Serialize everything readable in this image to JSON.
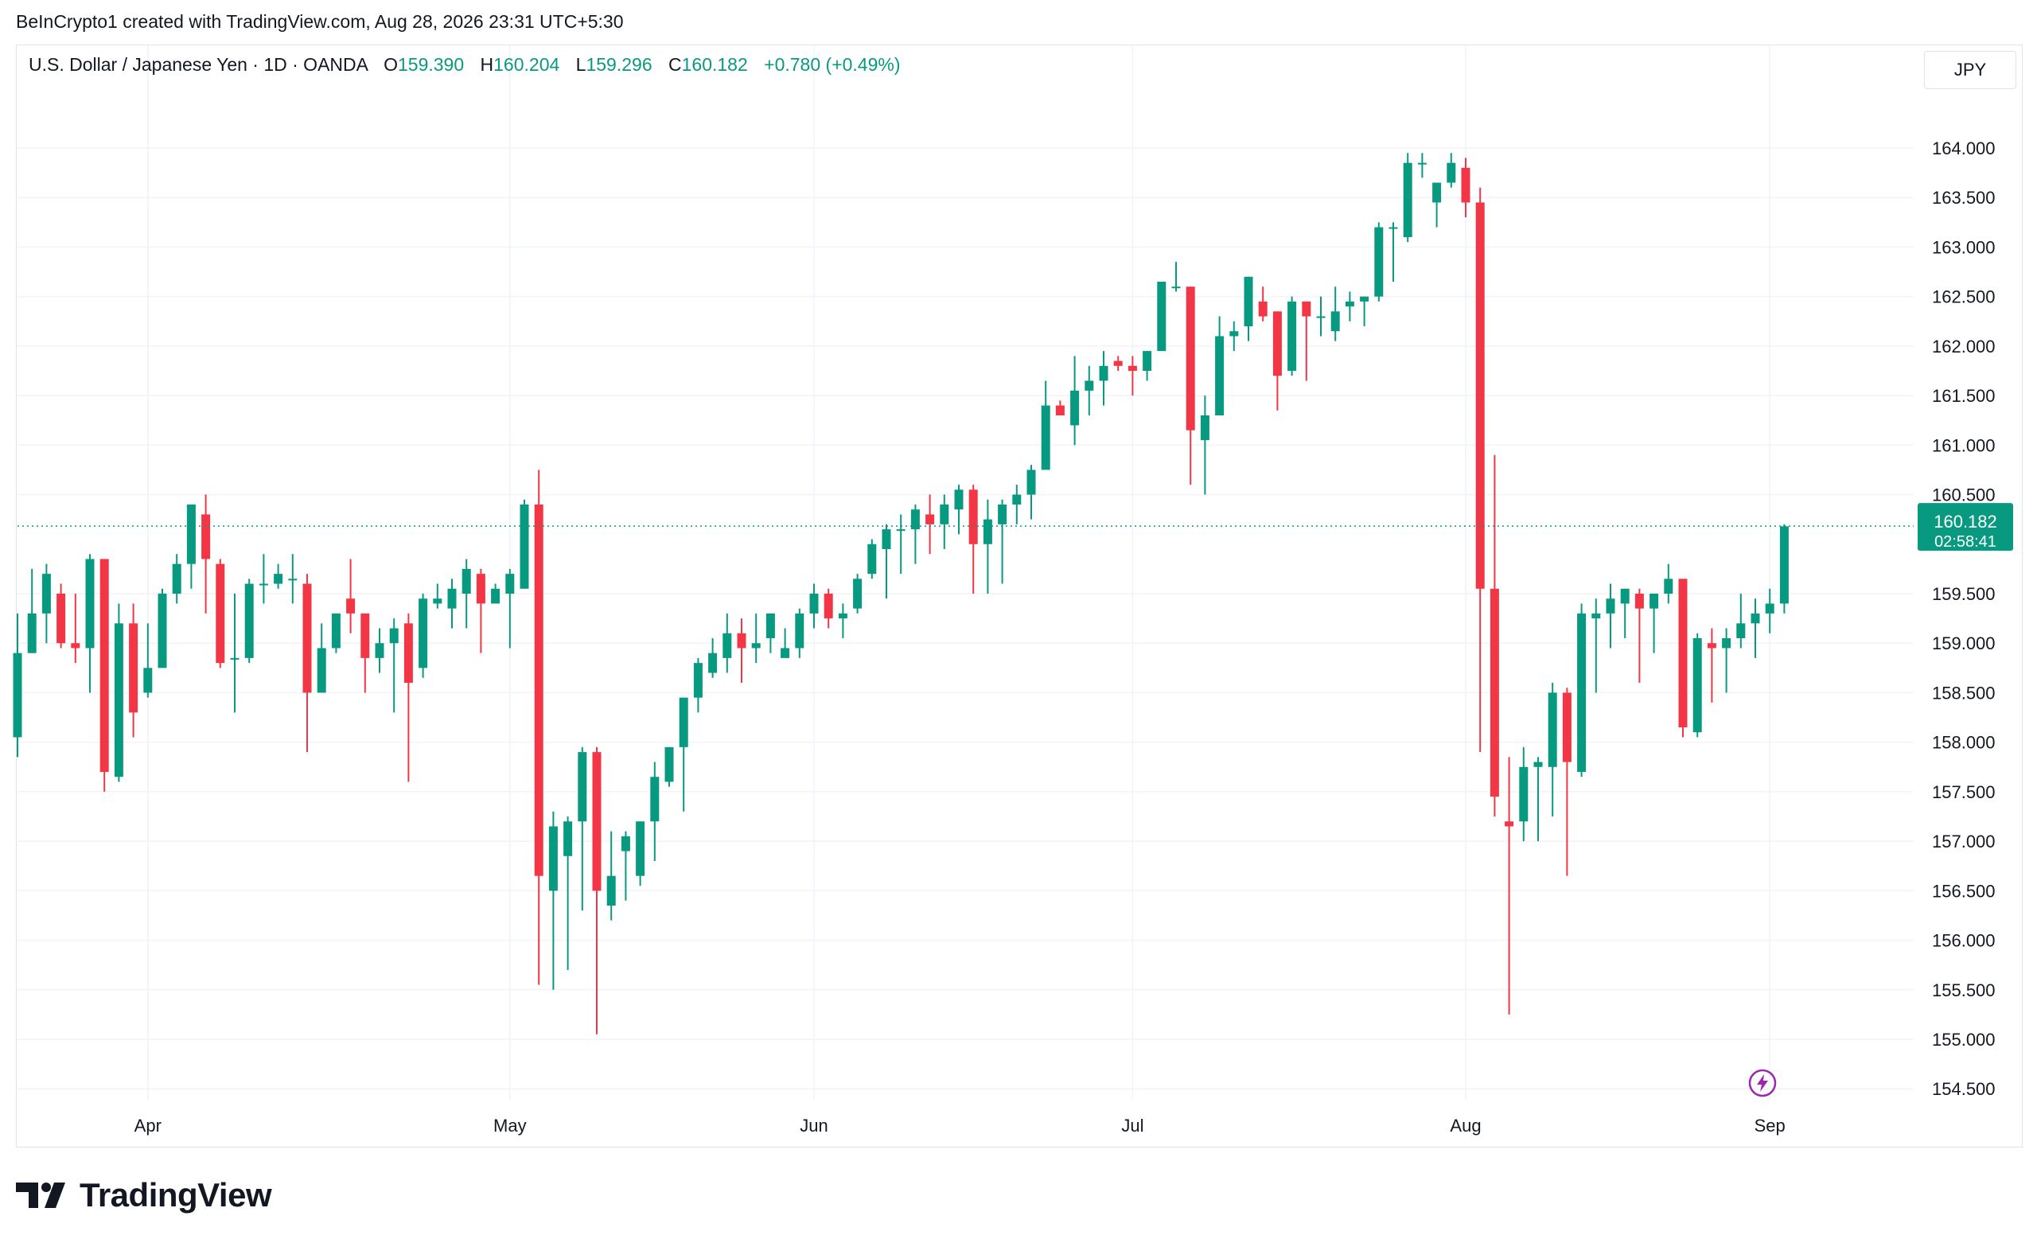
{
  "credit": "BeInCrypto1 created with TradingView.com, Aug 28, 2026 23:31 UTC+5:30",
  "header": {
    "symbol": "U.S. Dollar / Japanese Yen · 1D · OANDA",
    "open_label": "O",
    "open": "159.390",
    "high_label": "H",
    "high": "160.204",
    "low_label": "L",
    "low": "159.296",
    "close_label": "C",
    "close": "160.182",
    "change": "+0.780 (+0.49%)"
  },
  "currency": "JPY",
  "price_tag": {
    "price": "160.182",
    "countdown": "02:58:41"
  },
  "brand": {
    "name": "TradingView"
  },
  "colors": {
    "up": "#089981",
    "down": "#f23645",
    "grid": "#f0f3fa",
    "text": "#131722"
  },
  "icons": {
    "logo": "tradingview-logo-icon",
    "flash": "lightning-icon"
  },
  "chart_data": {
    "type": "candlestick",
    "y_ticks": [
      "164.000",
      "163.500",
      "163.000",
      "162.500",
      "162.000",
      "161.500",
      "161.000",
      "160.500",
      "159.500",
      "159.000",
      "158.500",
      "158.000",
      "157.500",
      "157.000",
      "156.500",
      "156.000",
      "155.500",
      "155.000",
      "154.500"
    ],
    "x_ticks": [
      "Apr",
      "May",
      "Jun",
      "Jul",
      "Aug",
      "Sep"
    ],
    "ylim": [
      154.3,
      164.5
    ],
    "last_price": 160.182,
    "grid": true,
    "candles": [
      [
        158.05,
        159.3,
        157.85,
        158.9
      ],
      [
        158.9,
        159.75,
        158.9,
        159.3
      ],
      [
        159.3,
        159.8,
        159.0,
        159.7
      ],
      [
        159.5,
        159.6,
        158.95,
        159.0
      ],
      [
        159.0,
        159.5,
        158.8,
        158.95
      ],
      [
        158.95,
        159.9,
        158.5,
        159.85
      ],
      [
        159.85,
        159.85,
        157.5,
        157.7
      ],
      [
        157.65,
        159.4,
        157.6,
        159.2
      ],
      [
        159.2,
        159.4,
        158.05,
        158.3
      ],
      [
        158.5,
        159.2,
        158.45,
        158.75
      ],
      [
        158.75,
        159.55,
        158.75,
        159.5
      ],
      [
        159.5,
        159.9,
        159.4,
        159.8
      ],
      [
        159.8,
        160.4,
        159.55,
        160.4
      ],
      [
        160.3,
        160.5,
        159.3,
        159.85
      ],
      [
        159.8,
        159.85,
        158.75,
        158.8
      ],
      [
        158.85,
        159.5,
        158.3,
        158.85
      ],
      [
        158.85,
        159.65,
        158.8,
        159.6
      ],
      [
        159.6,
        159.9,
        159.4,
        159.6
      ],
      [
        159.6,
        159.8,
        159.55,
        159.7
      ],
      [
        159.65,
        159.9,
        159.4,
        159.65
      ],
      [
        159.6,
        159.7,
        157.9,
        158.5
      ],
      [
        158.5,
        159.2,
        158.5,
        158.95
      ],
      [
        158.95,
        159.3,
        158.9,
        159.3
      ],
      [
        159.45,
        159.85,
        159.1,
        159.3
      ],
      [
        159.3,
        159.3,
        158.5,
        158.85
      ],
      [
        158.85,
        159.15,
        158.7,
        159.0
      ],
      [
        159.0,
        159.25,
        158.3,
        159.15
      ],
      [
        159.2,
        159.3,
        157.6,
        158.6
      ],
      [
        158.75,
        159.5,
        158.65,
        159.45
      ],
      [
        159.4,
        159.6,
        159.35,
        159.45
      ],
      [
        159.35,
        159.65,
        159.15,
        159.55
      ],
      [
        159.5,
        159.85,
        159.15,
        159.75
      ],
      [
        159.7,
        159.75,
        158.9,
        159.4
      ],
      [
        159.4,
        159.6,
        159.4,
        159.55
      ],
      [
        159.5,
        159.75,
        158.95,
        159.7
      ],
      [
        159.55,
        160.45,
        159.55,
        160.4
      ],
      [
        160.4,
        160.75,
        155.55,
        156.65
      ],
      [
        156.5,
        157.3,
        155.5,
        157.15
      ],
      [
        156.85,
        157.25,
        155.7,
        157.2
      ],
      [
        157.2,
        157.95,
        156.3,
        157.9
      ],
      [
        157.9,
        157.95,
        155.05,
        156.5
      ],
      [
        156.35,
        157.1,
        156.2,
        156.65
      ],
      [
        156.9,
        157.1,
        156.4,
        157.05
      ],
      [
        156.65,
        157.2,
        156.55,
        157.2
      ],
      [
        157.2,
        157.8,
        156.8,
        157.65
      ],
      [
        157.6,
        157.95,
        157.55,
        157.95
      ],
      [
        157.95,
        158.45,
        157.3,
        158.45
      ],
      [
        158.45,
        158.85,
        158.3,
        158.8
      ],
      [
        158.7,
        159.05,
        158.65,
        158.9
      ],
      [
        158.85,
        159.3,
        158.7,
        159.1
      ],
      [
        159.1,
        159.25,
        158.6,
        158.95
      ],
      [
        158.95,
        159.3,
        158.8,
        159.0
      ],
      [
        159.05,
        159.3,
        158.9,
        159.3
      ],
      [
        158.85,
        159.15,
        158.85,
        158.95
      ],
      [
        158.95,
        159.35,
        158.85,
        159.3
      ],
      [
        159.3,
        159.6,
        159.15,
        159.5
      ],
      [
        159.5,
        159.55,
        159.15,
        159.25
      ],
      [
        159.25,
        159.4,
        159.05,
        159.3
      ],
      [
        159.35,
        159.7,
        159.3,
        159.65
      ],
      [
        159.7,
        160.05,
        159.65,
        160.0
      ],
      [
        159.95,
        160.2,
        159.45,
        160.15
      ],
      [
        160.15,
        160.3,
        159.7,
        160.15
      ],
      [
        160.15,
        160.4,
        159.8,
        160.35
      ],
      [
        160.3,
        160.5,
        159.9,
        160.2
      ],
      [
        160.2,
        160.5,
        159.95,
        160.4
      ],
      [
        160.35,
        160.6,
        160.1,
        160.55
      ],
      [
        160.55,
        160.6,
        159.5,
        160.0
      ],
      [
        160.0,
        160.45,
        159.5,
        160.25
      ],
      [
        160.2,
        160.45,
        159.6,
        160.4
      ],
      [
        160.4,
        160.6,
        160.2,
        160.5
      ],
      [
        160.5,
        160.8,
        160.25,
        160.75
      ],
      [
        160.75,
        161.65,
        160.75,
        161.4
      ],
      [
        161.4,
        161.45,
        161.3,
        161.3
      ],
      [
        161.2,
        161.9,
        161.0,
        161.55
      ],
      [
        161.55,
        161.8,
        161.3,
        161.65
      ],
      [
        161.65,
        161.95,
        161.4,
        161.8
      ],
      [
        161.85,
        161.9,
        161.75,
        161.8
      ],
      [
        161.8,
        161.9,
        161.5,
        161.75
      ],
      [
        161.75,
        161.95,
        161.65,
        161.95
      ],
      [
        161.95,
        162.65,
        161.95,
        162.65
      ],
      [
        162.6,
        162.85,
        162.55,
        162.6
      ],
      [
        162.6,
        162.6,
        160.6,
        161.15
      ],
      [
        161.05,
        161.5,
        160.5,
        161.3
      ],
      [
        161.3,
        162.3,
        161.3,
        162.1
      ],
      [
        162.1,
        162.25,
        161.95,
        162.15
      ],
      [
        162.2,
        162.7,
        162.05,
        162.7
      ],
      [
        162.45,
        162.6,
        162.25,
        162.3
      ],
      [
        162.35,
        162.35,
        161.35,
        161.7
      ],
      [
        161.75,
        162.5,
        161.7,
        162.45
      ],
      [
        162.45,
        162.45,
        161.65,
        162.3
      ],
      [
        162.3,
        162.5,
        162.1,
        162.3
      ],
      [
        162.15,
        162.6,
        162.05,
        162.35
      ],
      [
        162.4,
        162.55,
        162.25,
        162.45
      ],
      [
        162.45,
        162.5,
        162.2,
        162.5
      ],
      [
        162.5,
        163.25,
        162.45,
        163.2
      ],
      [
        163.2,
        163.25,
        162.65,
        163.2
      ],
      [
        163.1,
        163.95,
        163.05,
        163.85
      ],
      [
        163.85,
        163.95,
        163.7,
        163.85
      ],
      [
        163.45,
        163.65,
        163.2,
        163.65
      ],
      [
        163.65,
        163.95,
        163.6,
        163.85
      ],
      [
        163.8,
        163.9,
        163.3,
        163.45
      ],
      [
        163.45,
        163.6,
        157.9,
        159.55
      ],
      [
        159.55,
        160.9,
        157.25,
        157.45
      ],
      [
        157.2,
        157.85,
        155.25,
        157.15
      ],
      [
        157.2,
        157.95,
        157.0,
        157.75
      ],
      [
        157.75,
        157.85,
        157.0,
        157.8
      ],
      [
        157.75,
        158.6,
        157.25,
        158.5
      ],
      [
        158.5,
        158.55,
        156.65,
        157.8
      ],
      [
        157.7,
        159.4,
        157.65,
        159.3
      ],
      [
        159.25,
        159.45,
        158.5,
        159.3
      ],
      [
        159.3,
        159.6,
        158.95,
        159.45
      ],
      [
        159.4,
        159.55,
        159.05,
        159.55
      ],
      [
        159.5,
        159.55,
        158.6,
        159.35
      ],
      [
        159.35,
        159.5,
        158.9,
        159.5
      ],
      [
        159.5,
        159.8,
        159.4,
        159.65
      ],
      [
        159.65,
        159.65,
        158.05,
        158.15
      ],
      [
        158.1,
        159.1,
        158.05,
        159.05
      ],
      [
        159.0,
        159.15,
        158.4,
        158.95
      ],
      [
        158.95,
        159.15,
        158.5,
        159.05
      ],
      [
        159.05,
        159.5,
        158.95,
        159.2
      ],
      [
        159.2,
        159.45,
        158.85,
        159.3
      ],
      [
        159.3,
        159.55,
        159.1,
        159.4
      ],
      [
        159.4,
        160.2,
        159.3,
        160.18
      ]
    ],
    "x_tick_candle_index": [
      9,
      34,
      55,
      77,
      100,
      121
    ]
  }
}
